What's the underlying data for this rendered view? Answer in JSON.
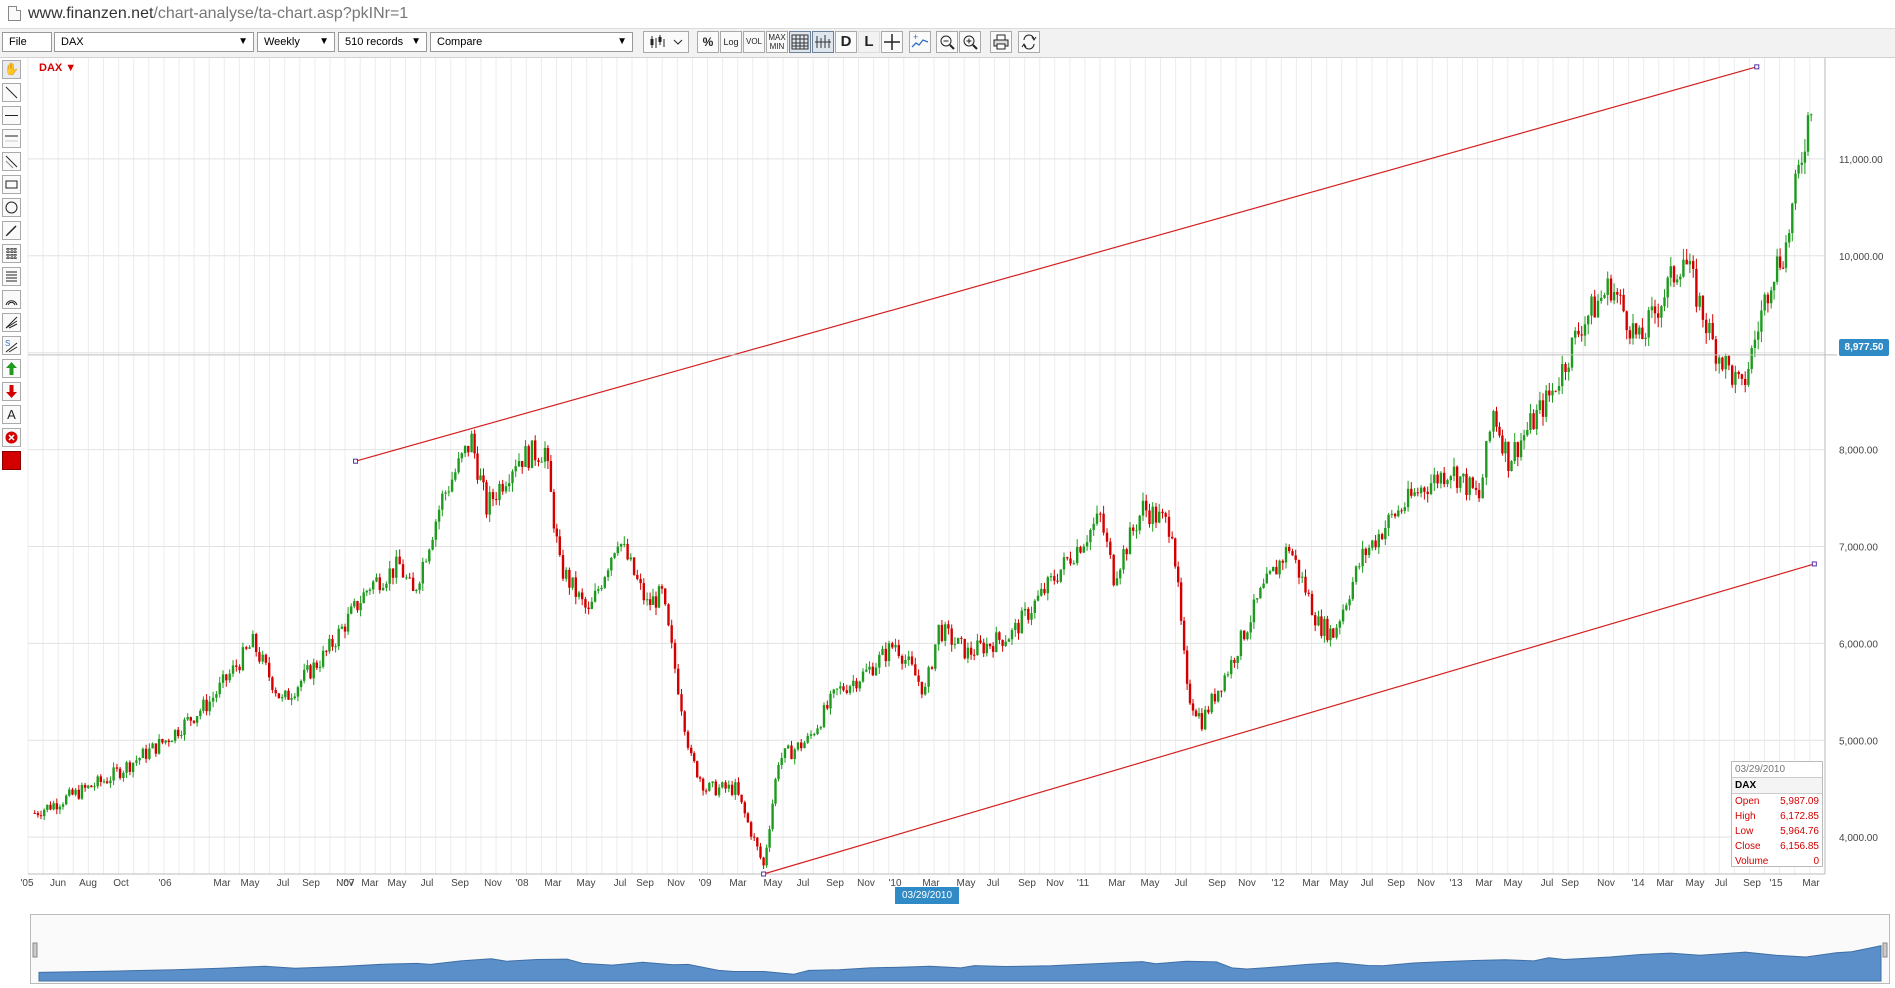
{
  "browser": {
    "url_host": "www.finanzen.net",
    "url_path": "/chart-analyse/ta-chart.asp?pkINr=1"
  },
  "toolbar": {
    "file_label": "File",
    "instrument": "DAX",
    "interval": "Weekly",
    "records": "510 records",
    "compare": "Compare",
    "pct_label": "%",
    "log_label": "Log",
    "vol_label": "VOL",
    "maxmin_label_1": "MAX",
    "maxmin_label_2": "MIN",
    "d_label": "D",
    "l_label": "L"
  },
  "chart": {
    "series_label": "DAX ▼",
    "price_tag": "8,977.50",
    "date_tag": "03/29/2010",
    "y_ticks": [
      {
        "value": 4000,
        "label": "4,000.00"
      },
      {
        "value": 5000,
        "label": "5,000.00"
      },
      {
        "value": 6000,
        "label": "6,000.00"
      },
      {
        "value": 7000,
        "label": "7,000.00"
      },
      {
        "value": 8000,
        "label": "8,000.00"
      },
      {
        "value": 10000,
        "label": "10,000.00"
      },
      {
        "value": 11000,
        "label": "11,000.00"
      }
    ],
    "x_ticks": [
      "'05",
      "Jun",
      "Aug",
      "Oct",
      "'06",
      "Mar",
      "May",
      "Jul",
      "Sep",
      "Nov",
      "'07",
      "Mar",
      "May",
      "Jul",
      "Sep",
      "Nov",
      "'08",
      "Mar",
      "May",
      "Jul",
      "Sep",
      "Nov",
      "'09",
      "Mar",
      "May",
      "Jul",
      "Sep",
      "Nov",
      "'10",
      "Mar",
      "May",
      "Jul",
      "Sep",
      "Nov",
      "'11",
      "Mar",
      "May",
      "Jul",
      "Sep",
      "Nov",
      "'12",
      "Mar",
      "May",
      "Jul",
      "Sep",
      "Nov",
      "'13",
      "Mar",
      "May",
      "Jul",
      "Sep",
      "Nov",
      "'14",
      "Mar",
      "May",
      "Jul",
      "Sep",
      "'15",
      "Mar"
    ]
  },
  "tooltip": {
    "date": "03/29/2010",
    "name": "DAX",
    "open_label": "Open",
    "open_value": "5,987.09",
    "high_label": "High",
    "high_value": "6,172.85",
    "low_label": "Low",
    "low_value": "5,964.76",
    "close_label": "Close",
    "close_value": "6,156.85",
    "volume_label": "Volume",
    "volume_value": "0"
  },
  "colors": {
    "up": "#1e9b1e",
    "down": "#d40000",
    "trendline": "#d42020",
    "accent": "#2f8ac6",
    "navigator_fill": "#5b8fc9"
  },
  "chart_data": {
    "type": "candlestick",
    "title": "",
    "series_name": "DAX",
    "interval": "weekly",
    "x_range": [
      "2005-01",
      "2015-03"
    ],
    "ylim": [
      3600,
      12000
    ],
    "grid": true,
    "close_path": [
      {
        "date": "2005-01",
        "value": 4250
      },
      {
        "date": "2005-06",
        "value": 4600
      },
      {
        "date": "2005-10",
        "value": 5000
      },
      {
        "date": "2006-01",
        "value": 5400
      },
      {
        "date": "2006-04",
        "value": 6000
      },
      {
        "date": "2006-06",
        "value": 5400
      },
      {
        "date": "2006-09",
        "value": 5900
      },
      {
        "date": "2006-12",
        "value": 6600
      },
      {
        "date": "2007-02",
        "value": 6800
      },
      {
        "date": "2007-03",
        "value": 6500
      },
      {
        "date": "2007-05",
        "value": 7500
      },
      {
        "date": "2007-07",
        "value": 8100
      },
      {
        "date": "2007-08",
        "value": 7400
      },
      {
        "date": "2007-10",
        "value": 7900
      },
      {
        "date": "2007-12",
        "value": 8000
      },
      {
        "date": "2008-01",
        "value": 6800
      },
      {
        "date": "2008-03",
        "value": 6300
      },
      {
        "date": "2008-05",
        "value": 7100
      },
      {
        "date": "2008-07",
        "value": 6400
      },
      {
        "date": "2008-08",
        "value": 6500
      },
      {
        "date": "2008-10",
        "value": 4800
      },
      {
        "date": "2008-11",
        "value": 4500
      },
      {
        "date": "2009-01",
        "value": 4500
      },
      {
        "date": "2009-03",
        "value": 3700
      },
      {
        "date": "2009-04",
        "value": 4800
      },
      {
        "date": "2009-06",
        "value": 5000
      },
      {
        "date": "2009-08",
        "value": 5500
      },
      {
        "date": "2009-10",
        "value": 5700
      },
      {
        "date": "2009-12",
        "value": 6000
      },
      {
        "date": "2010-02",
        "value": 5500
      },
      {
        "date": "2010-03",
        "value": 6150
      },
      {
        "date": "2010-05",
        "value": 5900
      },
      {
        "date": "2010-08",
        "value": 6100
      },
      {
        "date": "2010-10",
        "value": 6500
      },
      {
        "date": "2010-12",
        "value": 6900
      },
      {
        "date": "2011-02",
        "value": 7300
      },
      {
        "date": "2011-03",
        "value": 6700
      },
      {
        "date": "2011-05",
        "value": 7400
      },
      {
        "date": "2011-07",
        "value": 7200
      },
      {
        "date": "2011-08",
        "value": 5500
      },
      {
        "date": "2011-09",
        "value": 5200
      },
      {
        "date": "2011-11",
        "value": 5800
      },
      {
        "date": "2012-01",
        "value": 6500
      },
      {
        "date": "2012-03",
        "value": 7000
      },
      {
        "date": "2012-05",
        "value": 6200
      },
      {
        "date": "2012-06",
        "value": 6100
      },
      {
        "date": "2012-08",
        "value": 6900
      },
      {
        "date": "2012-10",
        "value": 7300
      },
      {
        "date": "2012-12",
        "value": 7600
      },
      {
        "date": "2013-02",
        "value": 7800
      },
      {
        "date": "2013-04",
        "value": 7500
      },
      {
        "date": "2013-05",
        "value": 8400
      },
      {
        "date": "2013-06",
        "value": 7900
      },
      {
        "date": "2013-09",
        "value": 8600
      },
      {
        "date": "2013-11",
        "value": 9300
      },
      {
        "date": "2014-01",
        "value": 9700
      },
      {
        "date": "2014-03",
        "value": 9100
      },
      {
        "date": "2014-06",
        "value": 10000
      },
      {
        "date": "2014-08",
        "value": 9100
      },
      {
        "date": "2014-10",
        "value": 8600
      },
      {
        "date": "2014-12",
        "value": 9800
      },
      {
        "date": "2015-01",
        "value": 10100
      },
      {
        "date": "2015-03",
        "value": 11800
      }
    ],
    "trendlines": [
      {
        "from": {
          "date": "2006-11",
          "value": 7880
        },
        "to": {
          "date": "2014-11",
          "value": 11950
        }
      },
      {
        "from": {
          "date": "2009-03",
          "value": 3620
        },
        "to": {
          "date": "2015-03",
          "value": 6820
        }
      }
    ]
  }
}
